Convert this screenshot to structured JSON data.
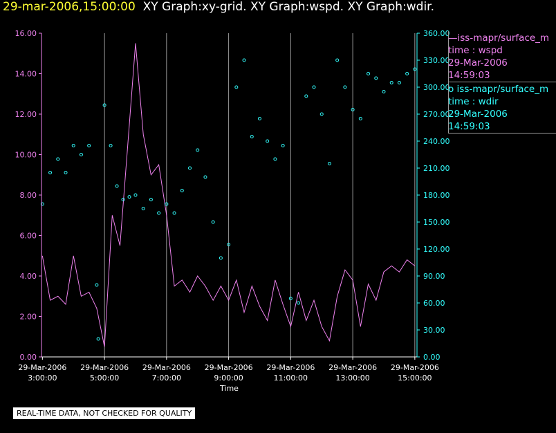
{
  "header": {
    "datetime": "29-mar-2006,15:00:00",
    "graphs": "XY Graph:xy-grid.  XY Graph:wspd.  XY Graph:wdir."
  },
  "legend": [
    {
      "line1": "—iss-mapr/surface_m",
      "line2": "time : wspd",
      "line3": "29-Mar-2006",
      "line4": "14:59:03",
      "color": "#ee82ee"
    },
    {
      "line1": "o  iss-mapr/surface_m",
      "line2": "time : wdir",
      "line3": "29-Mar-2006",
      "line4": "14:59:03",
      "color": "#33ffff"
    }
  ],
  "footer_note": "REAL-TIME DATA, NOT CHECKED FOR QUALITY",
  "colors": {
    "wspd": "#ee82ee",
    "wdir": "#33ffff",
    "grid": "#9a9a9a",
    "axis_text": "#ffffff"
  },
  "chart_data": {
    "type": "line",
    "xlabel": "Time",
    "x_tick_labels": [
      {
        "date": "29-Mar-2006",
        "time": "3:00:00"
      },
      {
        "date": "29-Mar-2006",
        "time": "5:00:00"
      },
      {
        "date": "29-Mar-2006",
        "time": "7:00:00"
      },
      {
        "date": "29-Mar-2006",
        "time": "9:00:00"
      },
      {
        "date": "29-Mar-2006",
        "time": "11:00:00"
      },
      {
        "date": "29-Mar-2006",
        "time": "13:00:00"
      },
      {
        "date": "29-Mar-2006",
        "time": "15:00:00"
      }
    ],
    "x_tick_hours": [
      3,
      5,
      7,
      9,
      11,
      13,
      15
    ],
    "x_grid_hours": [
      5,
      7,
      9,
      11,
      13,
      15
    ],
    "xlim_hours": [
      2.97,
      15.07
    ],
    "y_left_ticks": [
      "0.00",
      "2.00",
      "4.00",
      "6.00",
      "8.00",
      "10.00",
      "12.00",
      "14.00",
      "16.00"
    ],
    "y_left_lim": [
      0,
      16
    ],
    "y_right_ticks": [
      "0.00",
      "30.00",
      "60.00",
      "90.00",
      "120.00",
      "150.00",
      "180.00",
      "210.00",
      "240.00",
      "270.00",
      "300.00",
      "330.00",
      "360.00"
    ],
    "y_right_lim": [
      0,
      360
    ],
    "grid": "vertical",
    "series": [
      {
        "name": "iss-mapr/surface_m time : wspd",
        "axis": "left",
        "style": "line",
        "x": [
          3.0,
          3.25,
          3.5,
          3.75,
          4.0,
          4.25,
          4.5,
          4.75,
          5.0,
          5.25,
          5.5,
          5.75,
          6.0,
          6.25,
          6.5,
          6.75,
          7.0,
          7.25,
          7.5,
          7.75,
          8.0,
          8.25,
          8.5,
          8.75,
          9.0,
          9.25,
          9.5,
          9.75,
          10.0,
          10.25,
          10.5,
          10.75,
          11.0,
          11.25,
          11.5,
          11.75,
          12.0,
          12.25,
          12.5,
          12.75,
          13.0,
          13.25,
          13.5,
          13.75,
          14.0,
          14.25,
          14.5,
          14.75,
          15.0
        ],
        "y": [
          5.0,
          2.8,
          3.0,
          2.6,
          5.0,
          3.0,
          3.2,
          2.4,
          0.5,
          7.0,
          5.5,
          10.5,
          15.5,
          11.0,
          9.0,
          9.5,
          7.0,
          3.5,
          3.8,
          3.2,
          4.0,
          3.5,
          2.8,
          3.5,
          2.8,
          3.8,
          2.2,
          3.5,
          2.5,
          1.8,
          3.8,
          2.6,
          1.5,
          3.2,
          1.8,
          2.8,
          1.5,
          0.8,
          3.0,
          4.3,
          3.8,
          1.5,
          3.6,
          2.8,
          4.2,
          4.5,
          4.2,
          4.8,
          4.5
        ]
      },
      {
        "name": "iss-mapr/surface_m time : wdir",
        "axis": "right",
        "style": "points",
        "x": [
          3.0,
          3.25,
          3.5,
          3.75,
          4.0,
          4.25,
          4.5,
          4.75,
          4.8,
          5.0,
          5.2,
          5.4,
          5.6,
          5.8,
          6.0,
          6.25,
          6.5,
          6.75,
          7.0,
          7.25,
          7.5,
          7.75,
          8.0,
          8.25,
          8.5,
          8.75,
          9.0,
          9.25,
          9.5,
          9.75,
          10.0,
          10.25,
          10.5,
          10.75,
          11.0,
          11.25,
          11.5,
          11.75,
          12.0,
          12.25,
          12.5,
          12.75,
          13.0,
          13.25,
          13.5,
          13.75,
          14.0,
          14.25,
          14.5,
          14.75,
          15.0
        ],
        "y": [
          170,
          205,
          220,
          205,
          235,
          225,
          235,
          80,
          20,
          280,
          235,
          190,
          175,
          178,
          180,
          165,
          175,
          160,
          170,
          160,
          185,
          210,
          230,
          200,
          150,
          110,
          125,
          300,
          330,
          245,
          265,
          240,
          220,
          235,
          65,
          60,
          290,
          300,
          270,
          215,
          330,
          300,
          275,
          265,
          315,
          310,
          295,
          305,
          305,
          315,
          320
        ]
      }
    ]
  }
}
